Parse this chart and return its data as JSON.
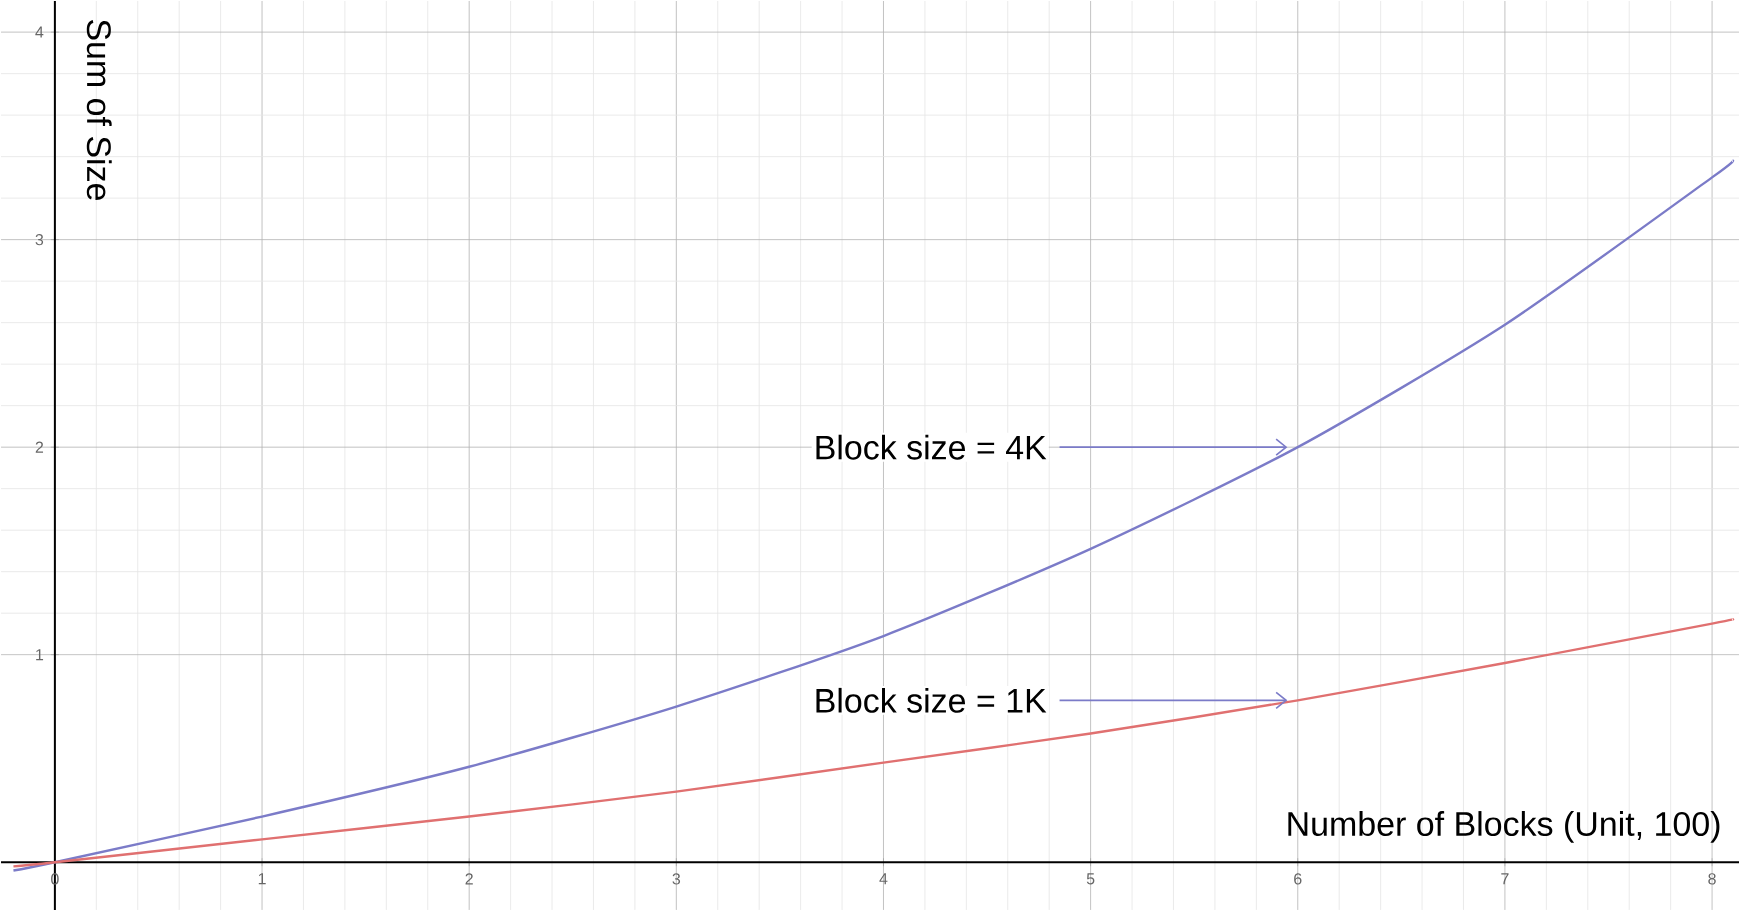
{
  "chart_data": {
    "type": "line",
    "xlabel": "Number of Blocks (Unit, 100)",
    "ylabel": "Sum of Size",
    "xlim": [
      -0.26,
      8.13
    ],
    "ylim": [
      -0.23,
      4.15
    ],
    "xticks": [
      0,
      1,
      2,
      3,
      4,
      5,
      6,
      7,
      8
    ],
    "yticks": [
      1,
      2,
      3,
      4
    ],
    "grid": true,
    "series": [
      {
        "color": "#7b7bc8",
        "x": [
          -0.2,
          0,
          1,
          2,
          3,
          4,
          5,
          6,
          7,
          8,
          8.1
        ],
        "values": [
          -0.04,
          0,
          0.22,
          0.46,
          0.75,
          1.09,
          1.51,
          2.0,
          2.59,
          3.3,
          3.38
        ]
      },
      {
        "color": "#e07070",
        "x": [
          -0.2,
          0,
          1,
          2,
          3,
          4,
          5,
          6,
          7,
          8,
          8.1
        ],
        "values": [
          -0.02,
          0,
          0.11,
          0.22,
          0.34,
          0.48,
          0.62,
          0.78,
          0.96,
          1.15,
          1.17
        ]
      }
    ],
    "annotations": [
      {
        "text": "Block size = 4K",
        "x": 6,
        "y": 2.0
      },
      {
        "text": "Block size = 1K",
        "x": 6,
        "y": 0.78
      }
    ]
  }
}
